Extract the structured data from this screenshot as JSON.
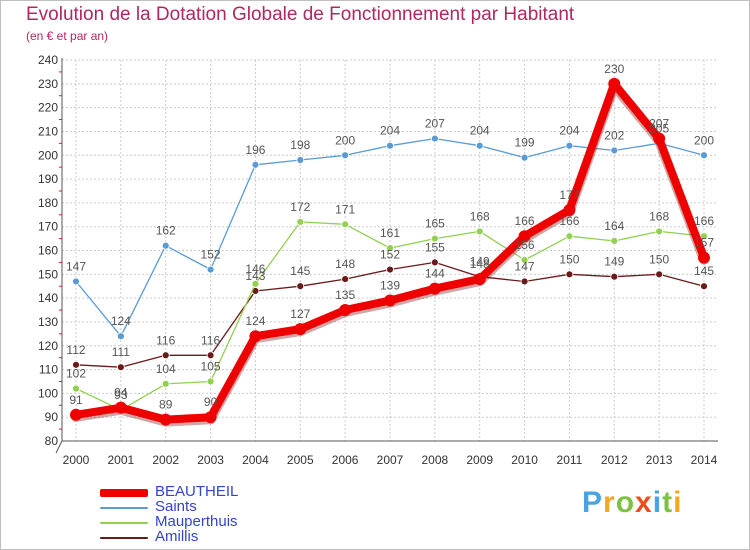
{
  "chart_data": {
    "type": "line",
    "title": "Evolution de la Dotation Globale de Fonctionnement par Habitant",
    "subtitle": "(en € et par an)",
    "xlabel": "",
    "ylabel": "",
    "x": [
      "2000",
      "2001",
      "2002",
      "2003",
      "2004",
      "2005",
      "2006",
      "2007",
      "2008",
      "2009",
      "2010",
      "2011",
      "2012",
      "2013",
      "2014"
    ],
    "ylim": [
      80,
      240
    ],
    "yticks": [
      80,
      90,
      100,
      110,
      120,
      130,
      140,
      150,
      160,
      170,
      180,
      190,
      200,
      210,
      220,
      230,
      240
    ],
    "grid": true,
    "legend_position": "bottom-left",
    "series": [
      {
        "name": "BEAUTHEIL",
        "color": "#ee0000",
        "values": [
          91,
          94,
          89,
          90,
          124,
          127,
          135,
          139,
          144,
          148,
          166,
          177,
          230,
          207,
          157
        ]
      },
      {
        "name": "Saints",
        "color": "#5b9bd5",
        "values": [
          147,
          124,
          162,
          152,
          196,
          198,
          200,
          204,
          207,
          204,
          199,
          204,
          202,
          205,
          200
        ]
      },
      {
        "name": "Mauperthuis",
        "color": "#92d050",
        "values": [
          102,
          93,
          104,
          105,
          146,
          172,
          171,
          161,
          165,
          168,
          156,
          166,
          164,
          168,
          166
        ]
      },
      {
        "name": "Amillis",
        "color": "#6b1a1a",
        "values": [
          112,
          111,
          116,
          116,
          143,
          145,
          148,
          152,
          155,
          149,
          147,
          150,
          149,
          150,
          145
        ]
      }
    ]
  },
  "colors": {
    "title": "#b0285f",
    "legend_text": "#3344cc",
    "grid": "#cccccc",
    "axis_text": "#333333",
    "label_text": "#555555"
  },
  "brand": {
    "letters": [
      "P",
      "r",
      "o",
      "x",
      "i",
      "t",
      "i"
    ],
    "colors": [
      "#4aa3df",
      "#f5a623",
      "#7dc242",
      "#e94e1b",
      "#4aa3df",
      "#7dc242",
      "#f5a623"
    ]
  }
}
